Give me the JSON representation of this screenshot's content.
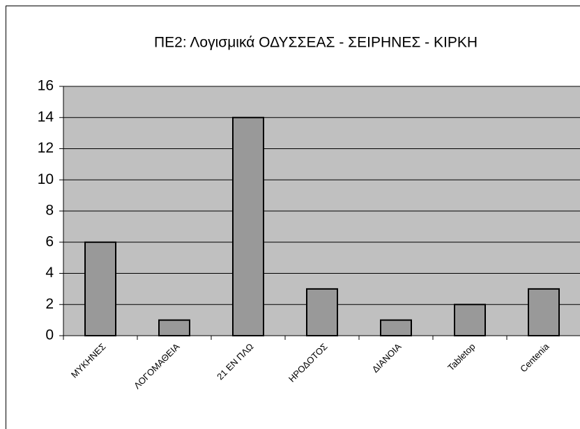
{
  "chart_data": {
    "type": "bar",
    "title": "ΠΕ2: Λογισμικά ΟΔΥΣΣΕΑΣ - ΣΕΙΡΗΝΕΣ - ΚΙΡΚΗ",
    "categories": [
      "ΜΥΚΗΝΕΣ",
      "ΛΟΓΟΜΑΘΕΙΑ",
      "21 ΕΝ ΠΛΩ",
      "ΗΡΟΔΟΤΟΣ",
      "ΔΙΑΝΟΙΑ",
      "Tabletop",
      "Centenia"
    ],
    "values": [
      6,
      1,
      14,
      3,
      1,
      2,
      3
    ],
    "color": "#999999",
    "ylim": [
      0,
      16
    ],
    "yticks": [
      0,
      2,
      4,
      6,
      8,
      10,
      12,
      14,
      16
    ],
    "grid": true
  }
}
